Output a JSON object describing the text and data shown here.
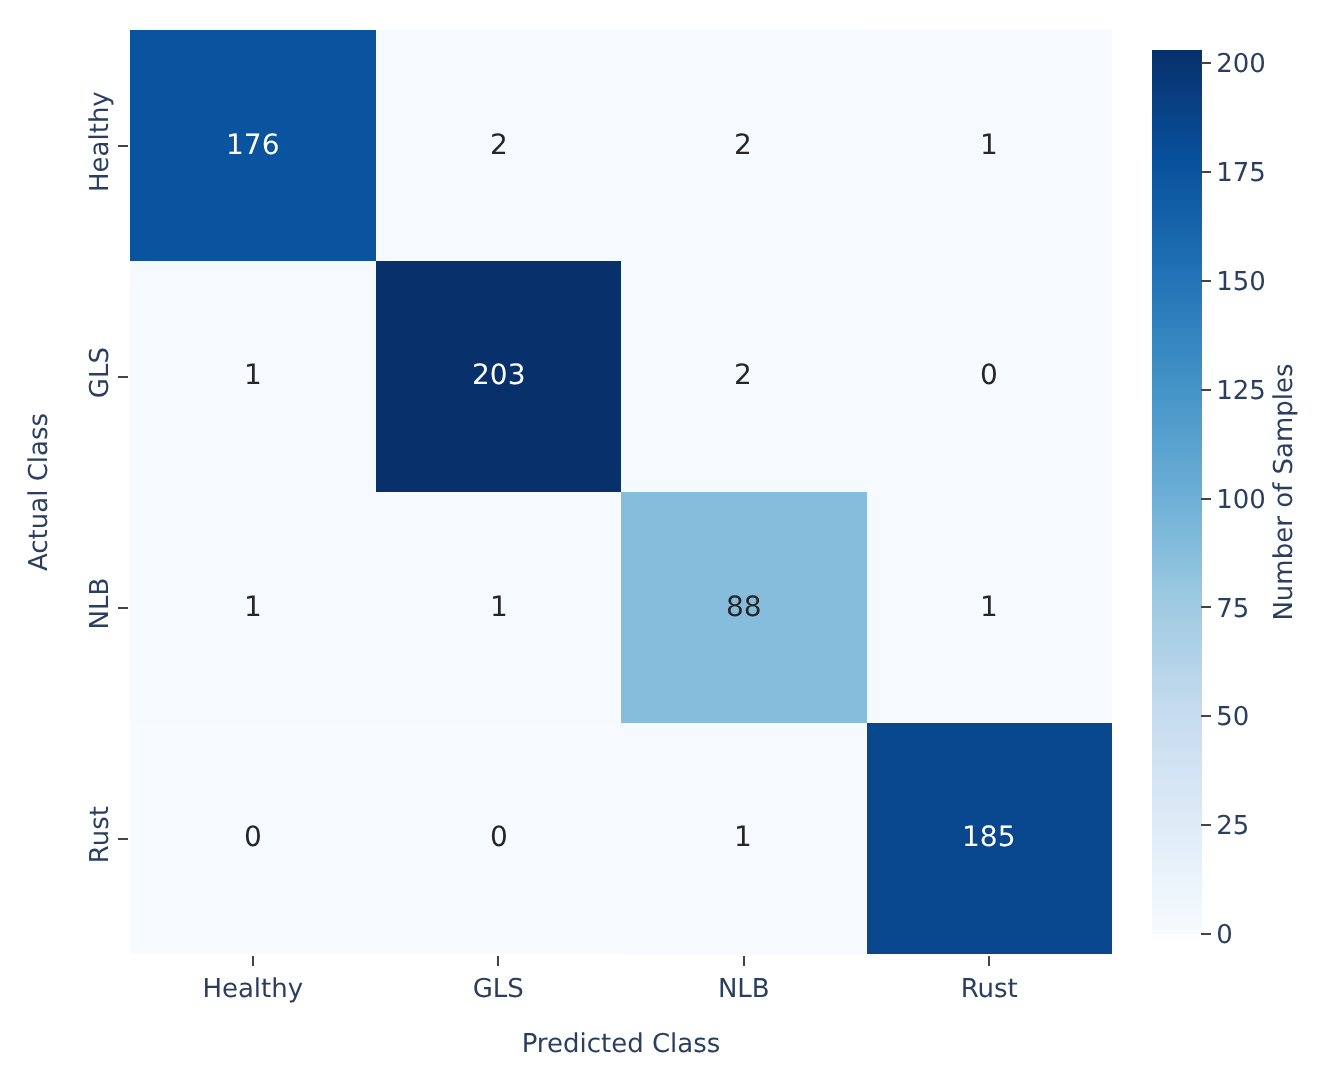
{
  "chart_data": {
    "type": "heatmap",
    "xlabel": "Predicted Class",
    "ylabel": "Actual Class",
    "clabel": "Number of Samples",
    "categories": [
      "Healthy",
      "GLS",
      "NLB",
      "Rust"
    ],
    "y_categories": [
      "Healthy",
      "GLS",
      "NLB",
      "Rust"
    ],
    "cells": [
      [
        176,
        2,
        2,
        1
      ],
      [
        1,
        203,
        2,
        0
      ],
      [
        1,
        1,
        88,
        1
      ],
      [
        0,
        0,
        1,
        185
      ]
    ],
    "clim": [
      0,
      203
    ],
    "cticks": [
      0,
      25,
      50,
      75,
      100,
      125,
      150,
      175,
      200
    ],
    "data_labels": true
  }
}
